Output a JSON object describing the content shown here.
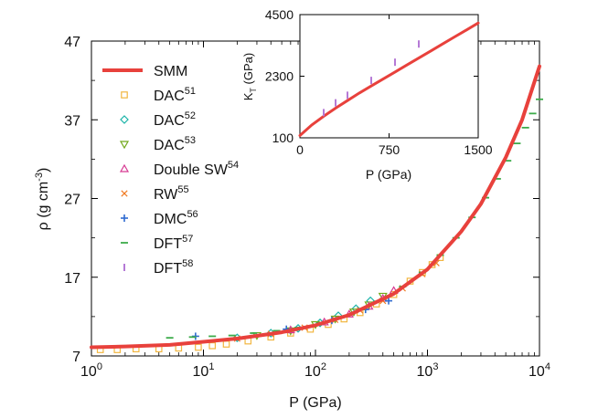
{
  "colors": {
    "SMM": "#e8413c",
    "DAC51": "#f2b640",
    "DAC52": "#1ab3a8",
    "DAC53": "#72a81a",
    "DoubleSW54": "#d63a92",
    "RW55": "#f07a22",
    "DMC56": "#2f6bd0",
    "DFT57": "#3cab4a",
    "DFT58": "#b57ad6"
  },
  "chart_data": [
    {
      "id": "main",
      "type": "scatter",
      "xlabel": "P (GPa)",
      "ylabel": "ρ (g cm",
      "ylabel_sup": "-3",
      "ylabel_tail": ")",
      "xscale": "log",
      "xlim": [
        1,
        10000
      ],
      "ylim": [
        7,
        47
      ],
      "xticks": [
        {
          "value": 1,
          "base": "10",
          "exp": "0"
        },
        {
          "value": 10,
          "base": "10",
          "exp": "1"
        },
        {
          "value": 100,
          "base": "10",
          "exp": "2"
        },
        {
          "value": 1000,
          "base": "10",
          "exp": "3"
        },
        {
          "value": 10000,
          "base": "10",
          "exp": "4"
        }
      ],
      "yticks": [
        {
          "value": 7,
          "label": "7"
        },
        {
          "value": 17,
          "label": "17"
        },
        {
          "value": 27,
          "label": "27"
        },
        {
          "value": 37,
          "label": "37"
        },
        {
          "value": 47,
          "label": "47"
        }
      ],
      "legend_position": "top-left",
      "series": [
        {
          "key": "SMM",
          "name": "SMM",
          "sup": "",
          "marker": "line",
          "x": [
            1,
            2,
            5,
            10,
            20,
            50,
            100,
            200,
            500,
            1000,
            2000,
            3000,
            5000,
            7000,
            10000
          ],
          "y": [
            8.1,
            8.2,
            8.4,
            8.8,
            9.2,
            10.0,
            10.9,
            12.2,
            14.9,
            18.0,
            22.8,
            26.3,
            32.2,
            37.0,
            43.8
          ]
        },
        {
          "key": "DAC51",
          "name": "DAC",
          "sup": "51",
          "marker": "square",
          "x": [
            1.2,
            1.7,
            2.5,
            4,
            6,
            9,
            12,
            16,
            25,
            40,
            60,
            90,
            130,
            180,
            250,
            350,
            500,
            700,
            900,
            1100,
            1300
          ],
          "y": [
            7.8,
            7.8,
            7.9,
            7.9,
            8.0,
            8.1,
            8.3,
            8.5,
            8.9,
            9.4,
            9.9,
            10.4,
            11.0,
            11.7,
            12.5,
            13.6,
            14.8,
            16.5,
            17.6,
            18.6,
            19.5
          ]
        },
        {
          "key": "DAC52",
          "name": "DAC",
          "sup": "52",
          "marker": "diamond",
          "x": [
            20,
            40,
            70,
            110,
            160,
            230,
            310
          ],
          "y": [
            9.3,
            9.9,
            10.5,
            11.2,
            12.1,
            13.0,
            14.0
          ]
        },
        {
          "key": "DAC53",
          "name": "DAC",
          "sup": "53",
          "marker": "triangle-down",
          "x": [
            30,
            60,
            100,
            150,
            220,
            300,
            400
          ],
          "y": [
            9.6,
            10.2,
            11.0,
            11.7,
            12.6,
            13.5,
            14.6
          ]
        },
        {
          "key": "DoubleSW54",
          "name": "Double SW",
          "sup": "54",
          "marker": "triangle-up",
          "x": [
            60,
            120,
            200,
            300,
            400,
            500
          ],
          "y": [
            10.3,
            11.3,
            12.3,
            13.3,
            14.3,
            15.3
          ]
        },
        {
          "key": "RW55",
          "name": "RW",
          "sup": "55",
          "marker": "cross",
          "x": [
            20,
            40,
            80,
            150,
            250,
            400,
            600,
            900,
            1200
          ],
          "y": [
            9.2,
            9.8,
            10.6,
            11.6,
            12.8,
            14.0,
            15.6,
            17.4,
            18.8
          ]
        },
        {
          "key": "DMC56",
          "name": "DMC",
          "sup": "56",
          "marker": "plus",
          "x": [
            8.5,
            55,
            140,
            280,
            450
          ],
          "y": [
            9.5,
            10.4,
            11.5,
            12.9,
            14.0
          ]
        },
        {
          "key": "DFT57",
          "name": "DFT",
          "sup": "57",
          "marker": "hdash",
          "x": [
            5,
            8,
            12,
            18,
            28,
            45,
            70,
            110,
            170,
            260,
            400,
            600,
            900,
            1300,
            1800,
            2500,
            3300,
            4200,
            5200,
            6300,
            7500,
            8700,
            10000
          ],
          "y": [
            9.3,
            9.4,
            9.5,
            9.6,
            9.9,
            10.2,
            10.6,
            11.2,
            11.9,
            12.9,
            14.2,
            15.8,
            17.6,
            19.8,
            22.0,
            24.6,
            27.1,
            29.5,
            31.8,
            34.0,
            36.0,
            37.8,
            39.6
          ]
        },
        {
          "key": "DFT58",
          "name": "DFT",
          "sup": "58",
          "marker": "vdash",
          "x": [],
          "y": []
        }
      ]
    },
    {
      "id": "inset",
      "type": "scatter",
      "xlabel": "P (GPa)",
      "ylabel": "K",
      "ylabel_sub": "T",
      "ylabel_tail": " (GPa)",
      "xlim": [
        0,
        1500
      ],
      "ylim": [
        100,
        4500
      ],
      "xticks": [
        {
          "value": 0,
          "label": "0"
        },
        {
          "value": 750,
          "label": "750"
        },
        {
          "value": 1500,
          "label": "1500"
        }
      ],
      "yticks": [
        {
          "value": 100,
          "label": "100"
        },
        {
          "value": 2300,
          "label": "2300"
        },
        {
          "value": 4500,
          "label": "4500"
        }
      ],
      "series": [
        {
          "key": "SMM",
          "name": "SMM",
          "marker": "line",
          "x": [
            0,
            100,
            200,
            300,
            400,
            500,
            600,
            700,
            800,
            900,
            1000,
            1100,
            1200,
            1300,
            1400,
            1500
          ],
          "y": [
            180,
            560,
            870,
            1160,
            1430,
            1700,
            1950,
            2200,
            2450,
            2700,
            2950,
            3200,
            3450,
            3700,
            3950,
            4200
          ]
        },
        {
          "key": "DFT58",
          "name": "DFT",
          "marker": "vdash",
          "x": [
            200,
            300,
            400,
            600,
            800,
            1000
          ],
          "y": [
            1000,
            1350,
            1620,
            2150,
            2800,
            3450
          ]
        }
      ]
    }
  ]
}
